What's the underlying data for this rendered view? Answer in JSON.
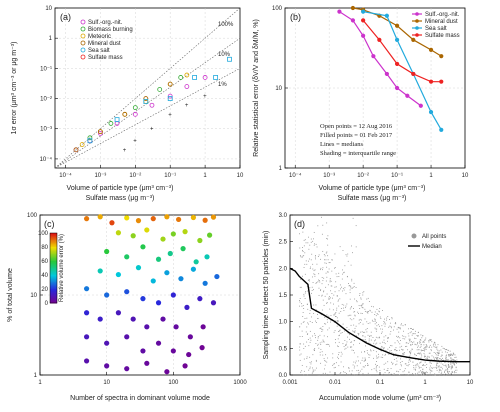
{
  "colors": {
    "sulf_org_nit": "#cc33cc",
    "biomass_burning": "#33aa33",
    "meteoric": "#ddaa00",
    "mineral_dust": "#aa6600",
    "sea_salt": "#22aadd",
    "sulfate_mass": "#ee2222",
    "all_points": "#999999",
    "median": "#000000"
  },
  "panels": {
    "a": {
      "label": "(a)",
      "ylabel": "1σ error (μm³ cm⁻³ or μg m⁻³)",
      "xlabel1": "Volume of particle type (μm³ cm⁻³)",
      "xlabel2": "Sulfate mass (μg m⁻³)",
      "yticks": [
        "10",
        "1",
        "10⁻¹",
        "10⁻²",
        "10⁻³",
        "10⁻⁴"
      ],
      "xticks": [
        "10⁻⁴",
        "10⁻³",
        "10⁻²",
        "10⁻¹",
        "1",
        "10"
      ],
      "ref_labels": [
        "100%",
        "10%",
        "1%"
      ],
      "legend": [
        "Sulf.-org.-nit.",
        "Biomass burning",
        "Meteoric",
        "Mineral dust",
        "Sea salt",
        "Sulfate mass"
      ]
    },
    "b": {
      "label": "(b)",
      "ylabel": "Relative statistical error (δV/V and δM/M, %)",
      "xlabel1": "Volume of particle type (μm³ cm⁻³)",
      "xlabel2": "Sulfate mass (μg m⁻³)",
      "yticks": [
        "100",
        "10",
        "1"
      ],
      "xticks": [
        "10⁻⁴",
        "10⁻³",
        "10⁻²",
        "10⁻¹",
        "1",
        "10"
      ],
      "legend": [
        "Sulf.-org.-nit.",
        "Mineral dust",
        "Sea salt",
        "Sulfate mass"
      ],
      "notes": [
        "Open points = 12 Aug 2016",
        "Filled points = 01 Feb 2017",
        "Lines = medians",
        "Shading = interquartile range"
      ]
    },
    "c": {
      "label": "(c)",
      "ylabel": "% of total volume",
      "xlabel": "Number of spectra in dominant volume mode",
      "yticks": [
        "100",
        "10",
        "1"
      ],
      "xticks": [
        "1",
        "10",
        "100",
        "1000"
      ],
      "colorbar_label": "Relative volume error (%)",
      "colorbar_ticks": [
        "100",
        "80",
        "60",
        "40",
        "20",
        "0"
      ]
    },
    "d": {
      "label": "(d)",
      "ylabel": "Sampling time to detect 50 particles (min)",
      "xlabel": "Accumulation mode volume (μm³ cm⁻³)",
      "yticks": [
        "3.0",
        "2.5",
        "2.0",
        "1.5",
        "1.0",
        "0.5",
        "0.0"
      ],
      "xticks": [
        "0.001",
        "0.01",
        "0.1",
        "1",
        "10"
      ],
      "legend": [
        "All points",
        "Median"
      ]
    }
  },
  "chart_data": [
    {
      "panel": "a",
      "type": "scatter",
      "xscale": "log",
      "yscale": "log",
      "xlim": [
        5e-05,
        10
      ],
      "ylim": [
        5e-05,
        10
      ],
      "reference_lines": [
        {
          "label": "100%",
          "slope": 1.0
        },
        {
          "label": "10%",
          "slope": 0.1
        },
        {
          "label": "1%",
          "slope": 0.01
        }
      ],
      "series": [
        {
          "name": "Sulf.-org.-nit.",
          "x": [
            0.0002,
            0.0005,
            0.001,
            0.003,
            0.01,
            0.03,
            0.1,
            0.3,
            1
          ],
          "y": [
            0.0002,
            0.0004,
            0.0007,
            0.0015,
            0.003,
            0.006,
            0.012,
            0.025,
            0.05
          ]
        },
        {
          "name": "Biomass burning",
          "x": [
            0.0005,
            0.002,
            0.01,
            0.05,
            0.2
          ],
          "y": [
            0.0005,
            0.0015,
            0.005,
            0.02,
            0.05
          ]
        },
        {
          "name": "Meteoric",
          "x": [
            0.0003,
            0.001,
            0.005,
            0.02,
            0.1,
            0.3
          ],
          "y": [
            0.0003,
            0.0008,
            0.003,
            0.008,
            0.03,
            0.06
          ]
        },
        {
          "name": "Mineral dust",
          "x": [
            0.0002,
            0.001,
            0.005,
            0.02,
            0.1
          ],
          "y": [
            0.0002,
            0.0008,
            0.003,
            0.01,
            0.03
          ]
        },
        {
          "name": "Sea salt",
          "x": [
            0.0005,
            0.003,
            0.02,
            0.1,
            0.5,
            2,
            5
          ],
          "y": [
            0.0004,
            0.002,
            0.008,
            0.01,
            0.05,
            0.05,
            0.2
          ]
        },
        {
          "name": "Sulfate mass",
          "x": [
            0.005,
            0.01,
            0.03,
            0.1,
            0.3,
            1
          ],
          "y": [
            0.0002,
            0.0004,
            0.001,
            0.003,
            0.006,
            0.012
          ]
        }
      ]
    },
    {
      "panel": "b",
      "type": "line",
      "xscale": "log",
      "yscale": "log",
      "xlim": [
        5e-05,
        10
      ],
      "ylim": [
        1,
        100
      ],
      "series": [
        {
          "name": "Sulf.-org.-nit.",
          "x": [
            0.002,
            0.005,
            0.01,
            0.02,
            0.05,
            0.1,
            0.2,
            0.5
          ],
          "y": [
            90,
            70,
            45,
            25,
            15,
            10,
            8,
            6
          ]
        },
        {
          "name": "Mineral dust",
          "x": [
            0.005,
            0.01,
            0.03,
            0.1,
            0.3,
            1,
            2
          ],
          "y": [
            100,
            95,
            80,
            60,
            40,
            30,
            25
          ]
        },
        {
          "name": "Sea salt",
          "x": [
            0.01,
            0.05,
            0.1,
            0.3,
            1,
            2
          ],
          "y": [
            90,
            80,
            40,
            15,
            5,
            3
          ]
        },
        {
          "name": "Sulfate mass",
          "x": [
            0.01,
            0.03,
            0.1,
            0.3,
            1,
            2
          ],
          "y": [
            70,
            40,
            20,
            15,
            12,
            12
          ]
        }
      ]
    },
    {
      "panel": "c",
      "type": "scatter",
      "xscale": "log",
      "yscale": "log",
      "xlim": [
        1,
        1000
      ],
      "ylim": [
        1,
        100
      ],
      "color_value": "Relative volume error (%)",
      "color_range": [
        0,
        100
      ],
      "points": [
        [
          5,
          90,
          90
        ],
        [
          8,
          95,
          85
        ],
        [
          12,
          80,
          95
        ],
        [
          20,
          92,
          80
        ],
        [
          30,
          85,
          88
        ],
        [
          50,
          90,
          92
        ],
        [
          80,
          95,
          86
        ],
        [
          120,
          88,
          90
        ],
        [
          200,
          93,
          84
        ],
        [
          300,
          86,
          91
        ],
        [
          400,
          94,
          87
        ],
        [
          15,
          60,
          75
        ],
        [
          25,
          55,
          70
        ],
        [
          40,
          65,
          78
        ],
        [
          70,
          50,
          72
        ],
        [
          100,
          58,
          68
        ],
        [
          150,
          62,
          74
        ],
        [
          250,
          48,
          70
        ],
        [
          350,
          56,
          66
        ],
        [
          10,
          35,
          60
        ],
        [
          20,
          30,
          55
        ],
        [
          35,
          40,
          58
        ],
        [
          60,
          28,
          52
        ],
        [
          90,
          33,
          50
        ],
        [
          140,
          38,
          56
        ],
        [
          220,
          26,
          48
        ],
        [
          320,
          30,
          45
        ],
        [
          8,
          20,
          45
        ],
        [
          15,
          18,
          40
        ],
        [
          30,
          22,
          42
        ],
        [
          50,
          15,
          38
        ],
        [
          80,
          19,
          35
        ],
        [
          130,
          16,
          32
        ],
        [
          200,
          21,
          36
        ],
        [
          300,
          14,
          30
        ],
        [
          450,
          17,
          28
        ],
        [
          5,
          12,
          30
        ],
        [
          10,
          10,
          28
        ],
        [
          20,
          11,
          25
        ],
        [
          35,
          9,
          22
        ],
        [
          60,
          8,
          20
        ],
        [
          100,
          10,
          18
        ],
        [
          160,
          7,
          15
        ],
        [
          250,
          9,
          14
        ],
        [
          400,
          8,
          12
        ],
        [
          5,
          6,
          18
        ],
        [
          8,
          5,
          15
        ],
        [
          15,
          6,
          12
        ],
        [
          25,
          5,
          10
        ],
        [
          40,
          4,
          8
        ],
        [
          70,
          5,
          6
        ],
        [
          110,
          4,
          5
        ],
        [
          180,
          3,
          4
        ],
        [
          280,
          4,
          3
        ],
        [
          5,
          3,
          12
        ],
        [
          10,
          2.5,
          10
        ],
        [
          20,
          3,
          8
        ],
        [
          35,
          2,
          6
        ],
        [
          60,
          2.5,
          5
        ],
        [
          100,
          2,
          4
        ],
        [
          170,
          1.8,
          3
        ],
        [
          270,
          2.2,
          2
        ],
        [
          5,
          1.5,
          8
        ],
        [
          10,
          1.3,
          6
        ],
        [
          20,
          1.2,
          5
        ],
        [
          40,
          1.4,
          4
        ],
        [
          80,
          1.1,
          3
        ],
        [
          150,
          1.3,
          2
        ]
      ]
    },
    {
      "panel": "d",
      "type": "scatter",
      "xscale": "log",
      "xlim": [
        0.001,
        10
      ],
      "ylim": [
        0,
        3.0
      ],
      "median": {
        "x": [
          0.001,
          0.0013,
          0.0016,
          0.0025,
          0.003,
          0.005,
          0.01,
          0.02,
          0.05,
          0.1,
          0.2,
          0.5,
          1,
          2,
          5,
          10
        ],
        "y": [
          2.0,
          1.95,
          1.85,
          1.7,
          1.25,
          1.15,
          1.0,
          0.8,
          0.6,
          0.48,
          0.38,
          0.32,
          0.28,
          0.26,
          0.25,
          0.25
        ]
      }
    }
  ]
}
